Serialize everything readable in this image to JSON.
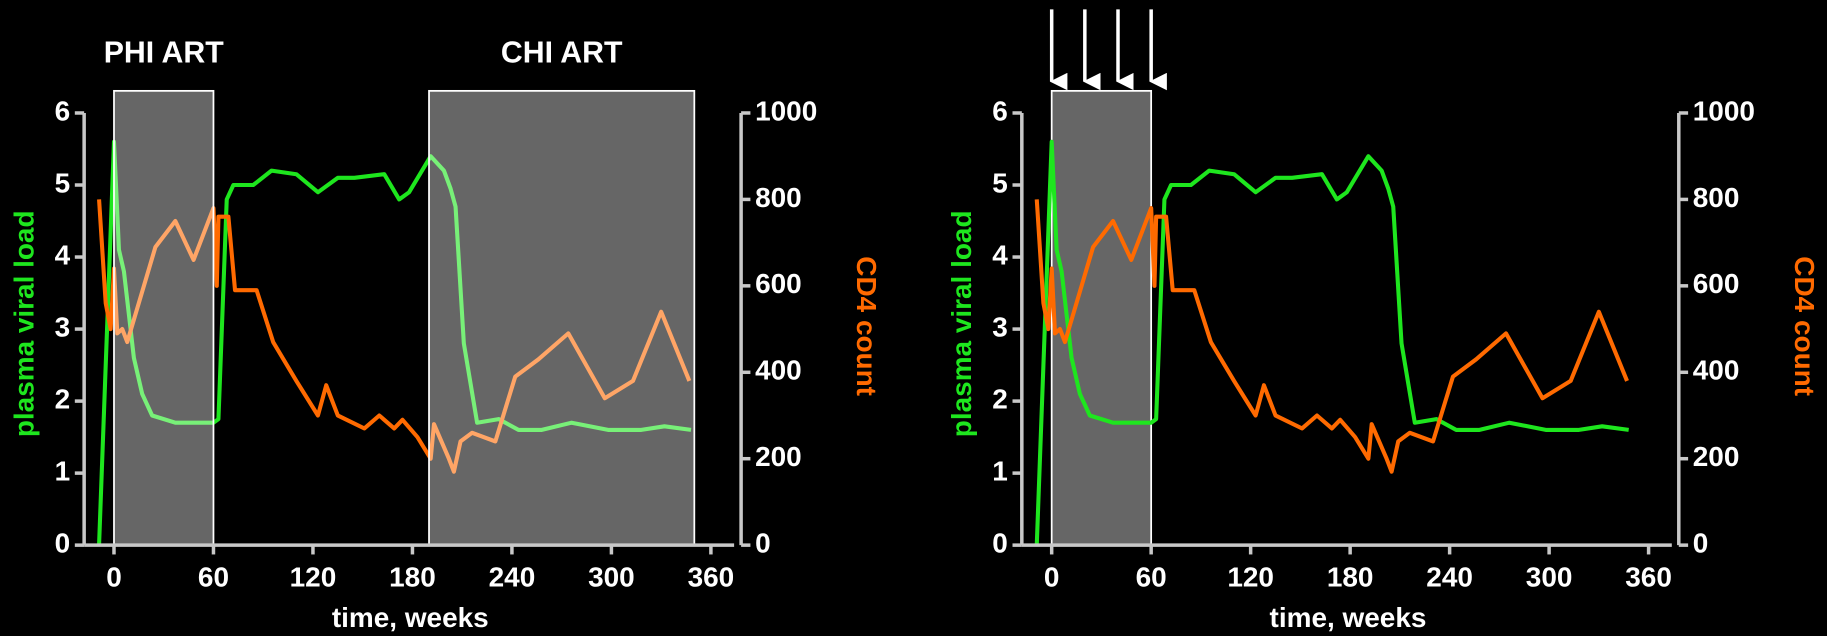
{
  "chart_data": [
    {
      "type": "line",
      "x_label": "time, weeks",
      "y_label": "plasma viral load",
      "y2_label": "CD4 count",
      "xlim": [
        -18,
        374
      ],
      "xticks": [
        0,
        60,
        120,
        180,
        240,
        300,
        360
      ],
      "ylim": [
        0,
        6
      ],
      "yticks": [
        0,
        1,
        2,
        3,
        4,
        5,
        6
      ],
      "y2lim": [
        0,
        1000
      ],
      "y2ticks": [
        0,
        200,
        400,
        600,
        800,
        1000
      ],
      "shaded_regions": [
        {
          "label": "PHI ART",
          "range": [
            0,
            60
          ]
        },
        {
          "label": "CHI ART",
          "range": [
            190,
            350
          ]
        }
      ],
      "series": [
        {
          "color": "#1ee61e",
          "x": [
            -9,
            0,
            3,
            6,
            12,
            17,
            23,
            37,
            60,
            63,
            68,
            72,
            84,
            95,
            110,
            123,
            135,
            145,
            163,
            172,
            178,
            191,
            199,
            203,
            206,
            211,
            219,
            232,
            244,
            258,
            276,
            298,
            318,
            332,
            348
          ],
          "values": [
            0,
            5.6,
            4.1,
            3.8,
            2.6,
            2.1,
            1.8,
            1.7,
            1.7,
            1.75,
            4.8,
            5.0,
            5.0,
            5.2,
            5.15,
            4.9,
            5.1,
            5.1,
            5.15,
            4.8,
            4.9,
            5.4,
            5.2,
            4.95,
            4.7,
            2.8,
            1.7,
            1.75,
            1.6,
            1.6,
            1.7,
            1.6,
            1.6,
            1.65,
            1.6
          ]
        },
        {
          "color": "#ff6a00",
          "axis": "y2",
          "x": [
            -9,
            -5,
            -2,
            0,
            2,
            5,
            8,
            25,
            37,
            48,
            60,
            62,
            63,
            69,
            73,
            86,
            96,
            110,
            123,
            128,
            135,
            151,
            160,
            169,
            174,
            183,
            191,
            193,
            202,
            205,
            209,
            216,
            230,
            242,
            256,
            274,
            296,
            313,
            330,
            347
          ],
          "values": [
            800,
            560,
            500,
            640,
            490,
            500,
            470,
            690,
            750,
            660,
            780,
            600,
            760,
            760,
            590,
            590,
            470,
            380,
            300,
            370,
            300,
            270,
            300,
            270,
            290,
            250,
            200,
            280,
            200,
            170,
            240,
            260,
            240,
            390,
            430,
            490,
            340,
            380,
            540,
            380
          ]
        }
      ]
    },
    {
      "type": "line",
      "x_label": "time, weeks",
      "y_label": "plasma viral load",
      "y2_label": "CD4 count",
      "xlim": [
        -18,
        374
      ],
      "xticks": [
        0,
        60,
        120,
        180,
        240,
        300,
        360
      ],
      "ylim": [
        0,
        6
      ],
      "yticks": [
        0,
        1,
        2,
        3,
        4,
        5,
        6
      ],
      "y2lim": [
        0,
        1000
      ],
      "y2ticks": [
        0,
        200,
        400,
        600,
        800,
        1000
      ],
      "shaded_regions": [
        {
          "range": [
            0,
            60
          ]
        }
      ],
      "arrows": [
        0,
        20,
        40,
        60
      ],
      "series": [
        {
          "color": "#1ee61e",
          "x": [
            -9,
            0,
            3,
            6,
            12,
            17,
            23,
            37,
            60,
            63,
            68,
            72,
            84,
            95,
            110,
            123,
            135,
            145,
            163,
            172,
            178,
            191,
            199,
            203,
            206,
            211,
            219,
            232,
            244,
            258,
            276,
            298,
            318,
            332,
            348
          ],
          "values": [
            0,
            5.6,
            4.1,
            3.8,
            2.6,
            2.1,
            1.8,
            1.7,
            1.7,
            1.75,
            4.8,
            5.0,
            5.0,
            5.2,
            5.15,
            4.9,
            5.1,
            5.1,
            5.15,
            4.8,
            4.9,
            5.4,
            5.2,
            4.95,
            4.7,
            2.8,
            1.7,
            1.75,
            1.6,
            1.6,
            1.7,
            1.6,
            1.6,
            1.65,
            1.6
          ]
        },
        {
          "color": "#ff6a00",
          "axis": "y2",
          "x": [
            -9,
            -5,
            -2,
            0,
            2,
            5,
            8,
            25,
            37,
            48,
            60,
            62,
            63,
            69,
            73,
            86,
            96,
            110,
            123,
            128,
            135,
            151,
            160,
            169,
            174,
            183,
            191,
            193,
            202,
            205,
            209,
            216,
            230,
            242,
            256,
            274,
            296,
            313,
            330,
            347
          ],
          "values": [
            800,
            560,
            500,
            640,
            490,
            500,
            470,
            690,
            750,
            660,
            780,
            600,
            760,
            760,
            590,
            590,
            470,
            380,
            300,
            370,
            300,
            270,
            300,
            270,
            290,
            250,
            200,
            280,
            200,
            170,
            240,
            260,
            240,
            390,
            430,
            490,
            340,
            380,
            540,
            380
          ]
        }
      ]
    }
  ]
}
